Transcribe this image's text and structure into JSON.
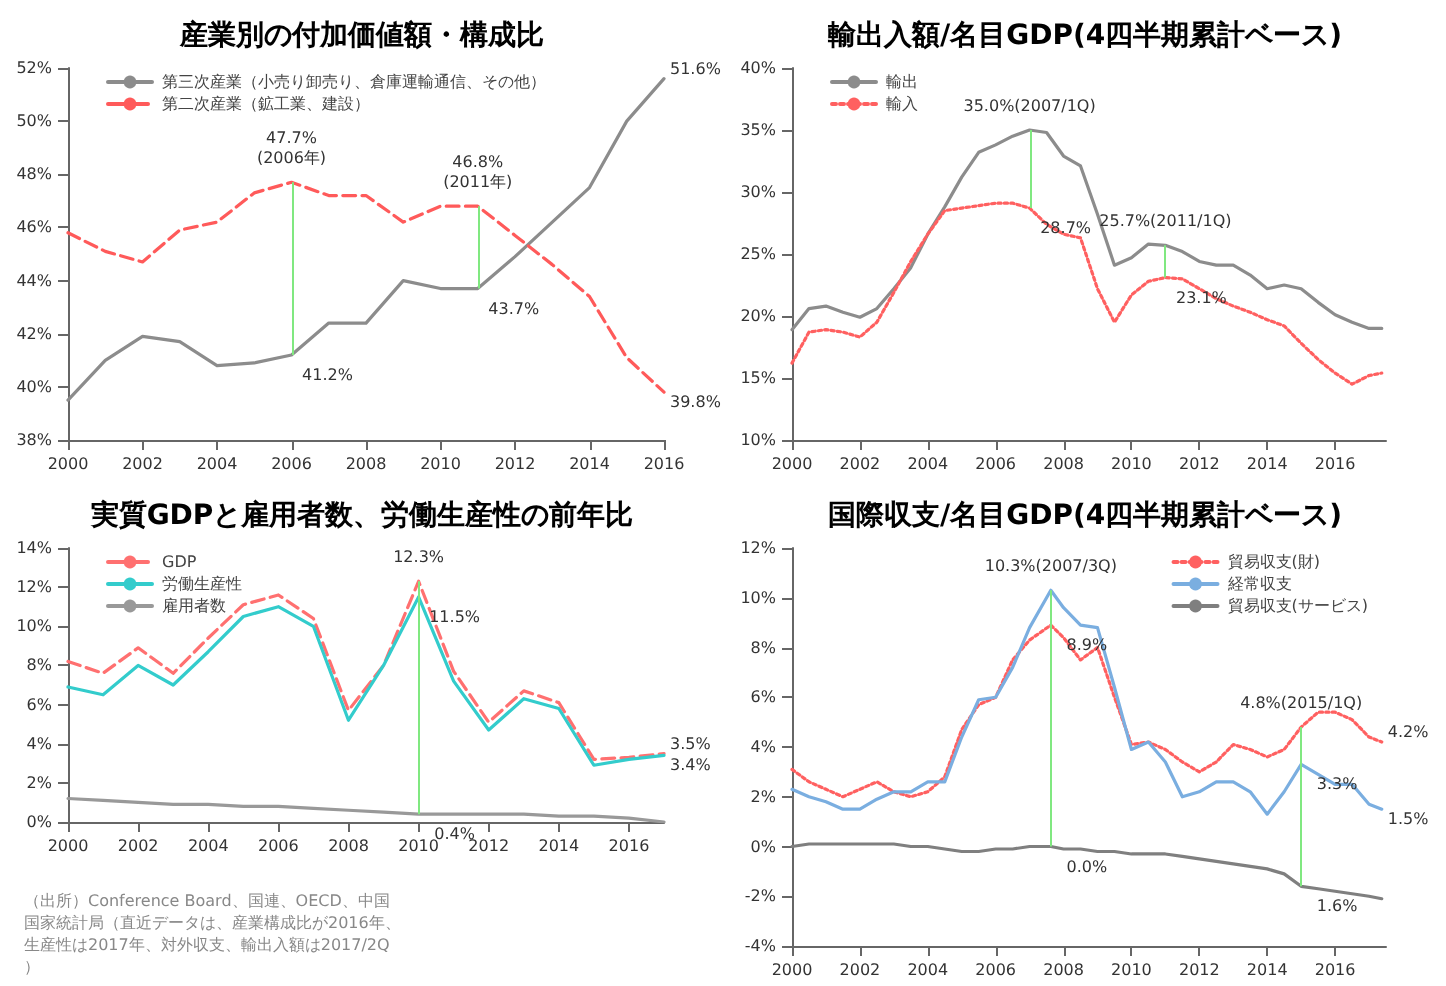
{
  "chart_data": [
    {
      "type": "line",
      "title": "産業別の付加価値額・構成比",
      "x": [
        2000,
        2001,
        2002,
        2003,
        2004,
        2005,
        2006,
        2007,
        2008,
        2009,
        2010,
        2011,
        2012,
        2013,
        2014,
        2015,
        2016
      ],
      "xlim": [
        2000,
        2016
      ],
      "xticks": [
        2000,
        2002,
        2004,
        2006,
        2008,
        2010,
        2012,
        2014,
        2016
      ],
      "ylim": [
        38,
        52
      ],
      "yticks": [
        {
          "value": 38,
          "label": "38%"
        },
        {
          "value": 40,
          "label": "40%"
        },
        {
          "value": 42,
          "label": "42%"
        },
        {
          "value": 44,
          "label": "44%"
        },
        {
          "value": 46,
          "label": "46%"
        },
        {
          "value": 48,
          "label": "48%"
        },
        {
          "value": 50,
          "label": "50%"
        },
        {
          "value": 52,
          "label": "52%"
        }
      ],
      "grid": false,
      "legend": "top left",
      "marker": "none",
      "series": [
        {
          "name": "第三次産業（小売り卸売り、倉庫運輸通信、その他）",
          "color": "#8c8c8c",
          "line_style": "solid",
          "values": [
            39.5,
            41.0,
            41.9,
            41.7,
            40.8,
            40.9,
            41.2,
            42.4,
            42.4,
            44.0,
            43.7,
            43.7,
            44.9,
            46.2,
            47.5,
            50.0,
            51.6
          ]
        },
        {
          "name": "第二次産業（鉱工業、建設）",
          "color": "#ff5a5a",
          "line_style": "dashed",
          "values": [
            45.8,
            45.1,
            44.7,
            45.9,
            46.2,
            47.3,
            47.7,
            47.2,
            47.2,
            46.2,
            46.8,
            46.8,
            45.7,
            44.6,
            43.4,
            41.1,
            39.8
          ]
        }
      ],
      "ref_lines": [
        {
          "axis": "x",
          "value": 2006,
          "color": "#80e880"
        },
        {
          "axis": "x",
          "value": 2011,
          "color": "#80e880"
        }
      ],
      "annotations": [
        {
          "text": "47.7%\n(2006年)",
          "x": 2006,
          "y": 47.7
        },
        {
          "text": "41.2%",
          "x": 2006,
          "y": 41.2
        },
        {
          "text": "46.8%\n(2011年)",
          "x": 2011,
          "y": 46.8
        },
        {
          "text": "43.7%",
          "x": 2011,
          "y": 43.7
        },
        {
          "text": "51.6%",
          "x": 2016,
          "y": 51.6
        },
        {
          "text": "39.8%",
          "x": 2016,
          "y": 39.8
        }
      ]
    },
    {
      "type": "line",
      "title": "輸出入額/名目GDP(4四半期累計ベース)",
      "x": [
        2000,
        2000.5,
        2001,
        2001.5,
        2002,
        2002.5,
        2003,
        2003.5,
        2004,
        2004.5,
        2005,
        2005.5,
        2006,
        2006.5,
        2007,
        2007.5,
        2008,
        2008.5,
        2009,
        2009.5,
        2010,
        2010.5,
        2011,
        2011.5,
        2012,
        2012.5,
        2013,
        2013.5,
        2014,
        2014.5,
        2015,
        2015.5,
        2016,
        2016.5,
        2017,
        2017.375
      ],
      "xlim": [
        2000,
        2017.5
      ],
      "xticks": [
        2000,
        2002,
        2004,
        2006,
        2008,
        2010,
        2012,
        2014,
        2016
      ],
      "ylim": [
        10,
        40
      ],
      "yticks": [
        {
          "value": 10,
          "label": "10%"
        },
        {
          "value": 15,
          "label": "15%"
        },
        {
          "value": 20,
          "label": "20%"
        },
        {
          "value": 25,
          "label": "25%"
        },
        {
          "value": 30,
          "label": "30%"
        },
        {
          "value": 35,
          "label": "35%"
        },
        {
          "value": 40,
          "label": "40%"
        }
      ],
      "grid": false,
      "legend": "top left",
      "marker": "none",
      "series": [
        {
          "name": "輸出",
          "color": "#8c8c8c",
          "line_style": "solid",
          "values": [
            18.9,
            20.6,
            20.8,
            20.3,
            19.9,
            20.6,
            22.2,
            23.9,
            26.6,
            28.8,
            31.2,
            33.2,
            33.8,
            34.5,
            35.0,
            34.8,
            32.9,
            32.1,
            28.2,
            24.1,
            24.7,
            25.8,
            25.7,
            25.2,
            24.4,
            24.1,
            24.1,
            23.3,
            22.2,
            22.5,
            22.2,
            21.1,
            20.1,
            19.5,
            19.0,
            19.0
          ]
        },
        {
          "name": "輸入",
          "color": "#ff6060",
          "line_style": "dotted",
          "values": [
            16.2,
            18.7,
            18.9,
            18.7,
            18.3,
            19.5,
            21.9,
            24.4,
            26.6,
            28.5,
            28.7,
            28.9,
            29.1,
            29.1,
            28.7,
            27.4,
            26.6,
            26.3,
            22.2,
            19.5,
            21.7,
            22.8,
            23.1,
            23.0,
            22.2,
            21.4,
            20.8,
            20.3,
            19.7,
            19.2,
            17.8,
            16.5,
            15.4,
            14.5,
            15.2,
            15.4
          ]
        }
      ],
      "ref_lines": [
        {
          "axis": "x",
          "value": 2007,
          "color": "#80e880"
        },
        {
          "axis": "x",
          "value": 2011,
          "color": "#80e880"
        }
      ],
      "annotations": [
        {
          "text": "35.0%(2007/1Q)",
          "x": 2007,
          "y": 35.0
        },
        {
          "text": "28.7%",
          "x": 2007,
          "y": 28.7
        },
        {
          "text": "25.7%(2011/1Q)",
          "x": 2011,
          "y": 25.7
        },
        {
          "text": "23.1%",
          "x": 2011,
          "y": 23.1
        }
      ]
    },
    {
      "type": "line",
      "title": "実質GDPと雇用者数、労働生産性の前年比",
      "x": [
        2000,
        2001,
        2002,
        2003,
        2004,
        2005,
        2006,
        2007,
        2008,
        2009,
        2010,
        2011,
        2012,
        2013,
        2014,
        2015,
        2016,
        2017
      ],
      "xlim": [
        2000,
        2017
      ],
      "xticks": [
        2000,
        2002,
        2004,
        2006,
        2008,
        2010,
        2012,
        2014,
        2016
      ],
      "ylim": [
        0,
        14
      ],
      "yticks": [
        {
          "value": 0,
          "label": "0%"
        },
        {
          "value": 2,
          "label": "2%"
        },
        {
          "value": 4,
          "label": "4%"
        },
        {
          "value": 6,
          "label": "6%"
        },
        {
          "value": 8,
          "label": "8%"
        },
        {
          "value": 10,
          "label": "10%"
        },
        {
          "value": 12,
          "label": "12%"
        },
        {
          "value": 14,
          "label": "14%"
        }
      ],
      "grid": false,
      "legend": "top left",
      "marker": "none",
      "series": [
        {
          "name": "GDP",
          "color": "#ff7070",
          "line_style": "dashed",
          "values": [
            8.2,
            7.6,
            8.9,
            7.6,
            9.4,
            11.1,
            11.6,
            10.4,
            5.7,
            8.0,
            12.3,
            7.7,
            5.1,
            6.7,
            6.1,
            3.2,
            3.3,
            3.5
          ]
        },
        {
          "name": "労働生産性",
          "color": "#33cccc",
          "line_style": "solid",
          "values": [
            6.9,
            6.5,
            8.0,
            7.0,
            8.7,
            10.5,
            11.0,
            10.0,
            5.2,
            8.0,
            11.5,
            7.2,
            4.7,
            6.3,
            5.8,
            2.9,
            3.2,
            3.4
          ]
        },
        {
          "name": "雇用者数",
          "color": "#999999",
          "line_style": "solid",
          "values": [
            1.2,
            1.1,
            1.0,
            0.9,
            0.9,
            0.8,
            0.8,
            0.7,
            0.6,
            0.5,
            0.4,
            0.4,
            0.4,
            0.4,
            0.3,
            0.3,
            0.2,
            0.0
          ]
        }
      ],
      "ref_lines": [
        {
          "axis": "x",
          "value": 2010,
          "color": "#80e880"
        }
      ],
      "annotations": [
        {
          "text": "12.3%",
          "x": 2010,
          "y": 12.3
        },
        {
          "text": "11.5%",
          "x": 2010,
          "y": 11.5
        },
        {
          "text": "0.4%",
          "x": 2010,
          "y": 0.4
        },
        {
          "text": "3.5%",
          "x": 2017,
          "y": 3.5
        },
        {
          "text": "3.4%",
          "x": 2017,
          "y": 3.4
        },
        "（出所）Conference Board、国連、OECD、中国国家統計局（直近データは、産業構成比が2016年、生産性は2017年、対外収支、輸出入額は2017/2Q）"
      ]
    },
    {
      "type": "line",
      "title": "国際収支/名目GDP(4四半期累計ベース)",
      "x": [
        2000,
        2000.5,
        2001,
        2001.5,
        2002,
        2002.5,
        2003,
        2003.5,
        2004,
        2004.5,
        2005,
        2005.5,
        2006,
        2006.5,
        2007,
        2007.625,
        2008,
        2008.5,
        2009,
        2009.5,
        2010,
        2010.5,
        2011,
        2011.5,
        2012,
        2012.5,
        2013,
        2013.5,
        2014,
        2014.5,
        2015,
        2015.5,
        2016,
        2016.5,
        2017,
        2017.375
      ],
      "xlim": [
        2000,
        2017.5
      ],
      "xticks": [
        2000,
        2002,
        2004,
        2006,
        2008,
        2010,
        2012,
        2014,
        2016
      ],
      "ylim": [
        -4,
        12
      ],
      "yticks": [
        {
          "value": -4,
          "label": "-4%"
        },
        {
          "value": -2,
          "label": "-2%"
        },
        {
          "value": 0,
          "label": "0%"
        },
        {
          "value": 2,
          "label": "2%"
        },
        {
          "value": 4,
          "label": "4%"
        },
        {
          "value": 6,
          "label": "6%"
        },
        {
          "value": 8,
          "label": "8%"
        },
        {
          "value": 10,
          "label": "10%"
        },
        {
          "value": 12,
          "label": "12%"
        }
      ],
      "grid": false,
      "legend": "top right",
      "marker": "none",
      "series": [
        {
          "name": "貿易収支(財)",
          "color": "#ff6060",
          "line_style": "dotted",
          "values": [
            3.1,
            2.6,
            2.3,
            2.0,
            2.3,
            2.6,
            2.2,
            2.0,
            2.2,
            2.8,
            4.7,
            5.7,
            6.0,
            7.5,
            8.3,
            8.9,
            8.4,
            7.5,
            8.0,
            6.0,
            4.1,
            4.2,
            3.9,
            3.4,
            3.0,
            3.4,
            4.1,
            3.9,
            3.6,
            3.9,
            4.8,
            5.4,
            5.4,
            5.1,
            4.4,
            4.2
          ]
        },
        {
          "name": "経常収支",
          "color": "#7aaee0",
          "line_style": "solid",
          "values": [
            2.3,
            2.0,
            1.8,
            1.5,
            1.5,
            1.9,
            2.2,
            2.2,
            2.6,
            2.6,
            4.4,
            5.9,
            6.0,
            7.2,
            8.8,
            10.3,
            9.6,
            8.9,
            8.8,
            6.4,
            3.9,
            4.2,
            3.4,
            2.0,
            2.2,
            2.6,
            2.6,
            2.2,
            1.3,
            2.2,
            3.3,
            2.9,
            2.5,
            2.5,
            1.7,
            1.5
          ]
        },
        {
          "name": "貿易収支(サービス)",
          "color": "#7f7f7f",
          "line_style": "solid",
          "values": [
            0.0,
            0.1,
            0.1,
            0.1,
            0.1,
            0.1,
            0.1,
            0.0,
            0.0,
            -0.1,
            -0.2,
            -0.2,
            -0.1,
            -0.1,
            0.0,
            0.0,
            -0.1,
            -0.1,
            -0.2,
            -0.2,
            -0.3,
            -0.3,
            -0.3,
            -0.4,
            -0.5,
            -0.6,
            -0.7,
            -0.8,
            -0.9,
            -1.1,
            -1.6,
            -1.7,
            -1.8,
            -1.9,
            -2.0,
            -2.1
          ]
        }
      ],
      "ref_lines": [
        {
          "axis": "x",
          "value": 2007.625,
          "color": "#80e880"
        },
        {
          "axis": "x",
          "value": 2015,
          "color": "#80e880"
        }
      ],
      "annotations": [
        {
          "text": "10.3%(2007/3Q)",
          "x": 2007.625,
          "y": 10.3
        },
        {
          "text": "8.9%",
          "x": 2007.625,
          "y": 8.9
        },
        {
          "text": "0.0%",
          "x": 2007.625,
          "y": 0.0
        },
        {
          "text": "4.8%(2015/1Q)",
          "x": 2015,
          "y": 4.8
        },
        {
          "text": "3.3%",
          "x": 2015,
          "y": 3.3
        },
        {
          "text": "1.6%",
          "x": 2015,
          "y": -1.6
        },
        {
          "text": "4.2%",
          "x": 2017.375,
          "y": 4.2
        },
        {
          "text": "1.5%",
          "x": 2017.375,
          "y": 1.5
        }
      ]
    }
  ]
}
